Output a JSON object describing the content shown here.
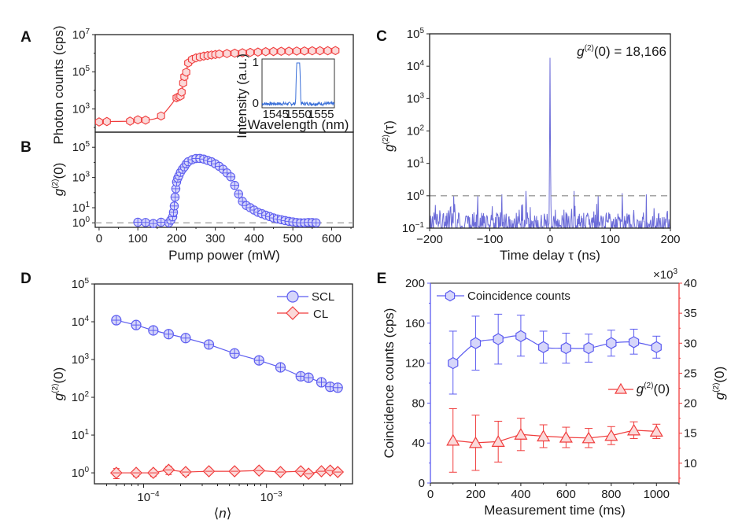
{
  "chart_data": [
    {
      "panel": "A",
      "type": "scatter",
      "title": "",
      "ylabel": "Photon counts (cps)",
      "xlabel": "",
      "yscale": "log",
      "ylim_log10": [
        1.75,
        7.0
      ],
      "xlim": [
        -10,
        656
      ],
      "yticks": [
        {
          "v": 3,
          "label": "10",
          "exp": "3"
        },
        {
          "v": 5,
          "label": "10",
          "exp": "5"
        },
        {
          "v": 7,
          "label": "10",
          "exp": "7"
        }
      ],
      "color": "#f03c3c",
      "fill": "#fbd9d9",
      "marker": "hexagon",
      "series": [
        {
          "name": "Photon counts",
          "x": [
            0,
            20,
            80,
            100,
            120,
            160,
            200,
            205,
            210,
            213,
            217,
            220,
            225,
            230,
            240,
            250,
            260,
            270,
            280,
            290,
            300,
            310,
            330,
            350,
            370,
            390,
            410,
            430,
            450,
            470,
            490,
            510,
            530,
            550,
            570,
            590,
            610
          ],
          "y": [
            200,
            210,
            220,
            260,
            250,
            420,
            4000,
            4500,
            5000,
            8000,
            25000,
            55000,
            95000,
            300000,
            460000,
            560000,
            630000,
            700000,
            750000,
            800000,
            850000,
            900000,
            950000,
            1000000,
            1050000,
            1100000,
            1150000,
            1200000,
            1230000,
            1260000,
            1280000,
            1300000,
            1320000,
            1340000,
            1350000,
            1360000,
            1380000
          ]
        }
      ],
      "inset": {
        "xlabel": "Wavelength (nm)",
        "ylabel": "Intensity (a.u.)",
        "xticks": [
          "1545",
          "1550",
          "1555"
        ],
        "yticks": [
          "0",
          "1"
        ],
        "xlim": [
          1542,
          1558
        ],
        "peak_center_nm": 1550,
        "peak_width_nm": 1.0,
        "peak_value": 1.0,
        "noise_level": 0.05,
        "color": "#3a6fd8"
      }
    },
    {
      "panel": "B",
      "type": "scatter",
      "ylabel": "g(2)(0)",
      "xlabel": "Pump power (mW)",
      "yscale": "log",
      "ylim_log10": [
        -0.3,
        6.0
      ],
      "xlim": [
        -10,
        656
      ],
      "xticks": [
        "0",
        "100",
        "200",
        "300",
        "400",
        "500",
        "600"
      ],
      "yticks": [
        {
          "v": 0,
          "label": "10",
          "exp": "0"
        },
        {
          "v": 1,
          "label": "10",
          "exp": "1"
        },
        {
          "v": 3,
          "label": "10",
          "exp": "3"
        },
        {
          "v": 5,
          "label": "10",
          "exp": "5"
        }
      ],
      "reference_line": 1,
      "color": "#5c5cf0",
      "fill": "#d6d6fa",
      "marker": "circle-plus",
      "series": [
        {
          "name": "g2(0)",
          "x": [
            100,
            120,
            140,
            160,
            180,
            185,
            190,
            192,
            194,
            196,
            198,
            200,
            203,
            206,
            210,
            215,
            220,
            225,
            230,
            240,
            250,
            260,
            270,
            280,
            290,
            300,
            310,
            320,
            330,
            340,
            350,
            360,
            370,
            380,
            390,
            400,
            410,
            420,
            430,
            440,
            450,
            460,
            470,
            480,
            490,
            500,
            510,
            520,
            530,
            540,
            550,
            560
          ],
          "y": [
            1.1,
            1.05,
            0.9,
            1.1,
            1.0,
            1.5,
            2.5,
            5,
            13,
            50,
            180,
            500,
            900,
            1300,
            2200,
            3500,
            5000,
            8000,
            11000,
            15000,
            18000,
            18166,
            16500,
            13500,
            11000,
            8000,
            5500,
            3500,
            2000,
            1100,
            300,
            80,
            26,
            14,
            10,
            7,
            5,
            4,
            3.2,
            2.6,
            2.1,
            1.8,
            1.6,
            1.4,
            1.25,
            1.15,
            1.05,
            1.0,
            1.0,
            1.05,
            1.05,
            1.0
          ]
        }
      ]
    },
    {
      "panel": "C",
      "type": "line",
      "ylabel": "g(2)(τ)",
      "xlabel": "Time delay τ (ns)",
      "yscale": "log",
      "ylim_log10": [
        -1,
        5
      ],
      "xlim": [
        -200,
        200
      ],
      "xticks": [
        "−200",
        "−100",
        "0",
        "100",
        "200"
      ],
      "xtick_values": [
        -200,
        -100,
        0,
        100,
        200
      ],
      "yticks": [
        {
          "v": -1,
          "label": "10",
          "exp": "−1"
        },
        {
          "v": 0,
          "label": "10",
          "exp": "0"
        },
        {
          "v": 1,
          "label": "10",
          "exp": "1"
        },
        {
          "v": 2,
          "label": "10",
          "exp": "2"
        },
        {
          "v": 3,
          "label": "10",
          "exp": "3"
        },
        {
          "v": 4,
          "label": "10",
          "exp": "4"
        },
        {
          "v": 5,
          "label": "10",
          "exp": "5"
        }
      ],
      "reference_line": 1,
      "annotation": {
        "prefix": "g",
        "sup": "(2)",
        "suffix": "(0) = 18,166"
      },
      "peak_value": 18166,
      "side_peaks": [
        {
          "x": -160,
          "y": 1.0
        },
        {
          "x": -120,
          "y": 1.0
        },
        {
          "x": -80,
          "y": 1.1
        },
        {
          "x": -40,
          "y": 1.4
        },
        {
          "x": 40,
          "y": 1.4
        },
        {
          "x": 80,
          "y": 1.0
        },
        {
          "x": 120,
          "y": 1.2
        },
        {
          "x": 160,
          "y": 1.1
        }
      ],
      "noise_range": [
        0.1,
        0.45
      ],
      "color": "#6b6bd8"
    },
    {
      "panel": "D",
      "type": "scatter",
      "ylabel": "g(2)(0)",
      "xlabel": "⟨n⟩",
      "xscale": "log",
      "yscale": "log",
      "xlim_log10": [
        -4.4,
        -2.3
      ],
      "ylim_log10": [
        -0.29,
        5
      ],
      "xticks": [
        {
          "v": -4,
          "label": "10",
          "exp": "−4"
        },
        {
          "v": -3,
          "label": "10",
          "exp": "−3"
        }
      ],
      "yticks": [
        {
          "v": 0,
          "label": "10",
          "exp": "0"
        },
        {
          "v": 1,
          "label": "10",
          "exp": "1"
        },
        {
          "v": 2,
          "label": "10",
          "exp": "2"
        },
        {
          "v": 3,
          "label": "10",
          "exp": "3"
        },
        {
          "v": 4,
          "label": "10",
          "exp": "4"
        },
        {
          "v": 5,
          "label": "10",
          "exp": "5"
        }
      ],
      "legend": {
        "position": "top-right",
        "entries": [
          "SCL",
          "CL"
        ]
      },
      "series": [
        {
          "name": "SCL",
          "color": "#5c5cf0",
          "fill": "#d6d6fa",
          "marker": "circle",
          "x": [
            6e-05,
            8.7e-05,
            0.00012,
            0.00016,
            0.00022,
            0.00034,
            0.00055,
            0.00087,
            0.0013,
            0.0019,
            0.0022,
            0.0028,
            0.0033,
            0.0038
          ],
          "y": [
            11000,
            8200,
            5900,
            4700,
            3700,
            2500,
            1450,
            950,
            620,
            360,
            330,
            250,
            190,
            180
          ]
        },
        {
          "name": "CL",
          "color": "#f03c3c",
          "fill": "#fbd9d9",
          "marker": "diamond",
          "x": [
            6e-05,
            8.7e-05,
            0.00012,
            0.00016,
            0.00022,
            0.00034,
            0.00055,
            0.00087,
            0.0013,
            0.0019,
            0.0022,
            0.0028,
            0.0033,
            0.0038
          ],
          "y": [
            1.0,
            1.0,
            1.0,
            1.2,
            1.05,
            1.1,
            1.1,
            1.15,
            1.05,
            1.1,
            0.95,
            1.1,
            1.15,
            1.05
          ],
          "err": [
            0.3,
            0.2,
            0.2,
            0.3,
            0.2,
            0.15,
            0.15,
            0.2,
            0.15,
            0.15,
            0.15,
            0.15,
            0.15,
            0.15
          ]
        }
      ]
    },
    {
      "panel": "E",
      "type": "scatter",
      "xlabel": "Measurement time (ms)",
      "ylabel_left": "Coincidence counts (cps)",
      "ylabel_right": "g(2)(0)",
      "right_multiplier": "×10",
      "right_multiplier_exp": "3",
      "xlim": [
        0,
        1100
      ],
      "ylim_left": [
        0,
        200
      ],
      "ylim_right": [
        6.7,
        40
      ],
      "xticks": [
        "0",
        "200",
        "400",
        "600",
        "800",
        "1000"
      ],
      "xtick_values": [
        0,
        200,
        400,
        600,
        800,
        1000
      ],
      "yticks_left": [
        "0",
        "40",
        "80",
        "120",
        "160",
        "200"
      ],
      "yticks_left_values": [
        0,
        40,
        80,
        120,
        160,
        200
      ],
      "yticks_right": [
        "10",
        "15",
        "20",
        "25",
        "30",
        "35",
        "40"
      ],
      "yticks_right_values": [
        10,
        15,
        20,
        25,
        30,
        35,
        40
      ],
      "left_color": "#5c5cf0",
      "right_color": "#f03c3c",
      "legend": {
        "entries": [
          "Coincidence counts",
          "g(2)(0)"
        ]
      },
      "series": [
        {
          "name": "Coincidence counts",
          "axis": "left",
          "color": "#5c5cf0",
          "fill": "#d6d6fa",
          "marker": "hexagon",
          "x": [
            100,
            200,
            300,
            400,
            500,
            600,
            700,
            800,
            900,
            1000
          ],
          "y": [
            120,
            140,
            144,
            147,
            136,
            135,
            135,
            140,
            141,
            136
          ],
          "err_lo": [
            31,
            27,
            25,
            20,
            16,
            15,
            14,
            13,
            12,
            11
          ],
          "err_hi": [
            32,
            27,
            25,
            21,
            16,
            15,
            14,
            13,
            13,
            11
          ]
        },
        {
          "name": "g(2)(0)",
          "axis": "right",
          "color": "#f03c3c",
          "fill": "#fbd9d9",
          "marker": "triangle",
          "x": [
            100,
            200,
            300,
            400,
            500,
            600,
            700,
            800,
            900,
            1000
          ],
          "y": [
            13.8,
            13.4,
            13.6,
            14.8,
            14.5,
            14.3,
            14.2,
            14.6,
            15.5,
            15.3
          ],
          "err": [
            5.3,
            4.6,
            3.4,
            2.7,
            1.9,
            1.7,
            1.6,
            1.5,
            1.4,
            1.2
          ]
        }
      ]
    }
  ],
  "panel_labels": [
    "A",
    "B",
    "C",
    "D",
    "E"
  ]
}
